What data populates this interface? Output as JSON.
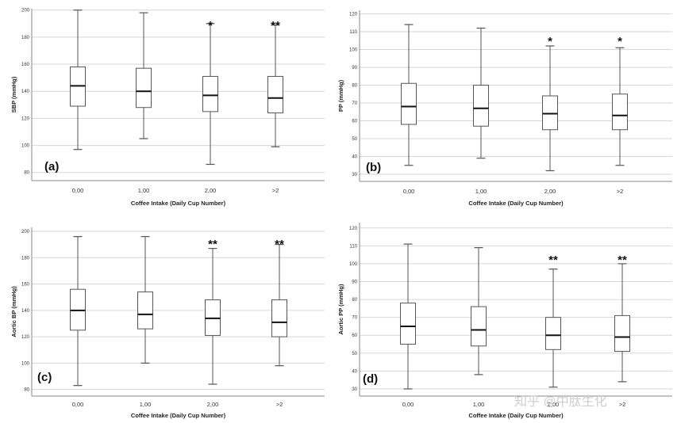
{
  "watermark": "知乎 @中肽生化",
  "chart_data": [
    {
      "type": "box",
      "panel_label": "(a)",
      "xlabel": "Coffee Intake (Daily Cup Number)",
      "ylabel": "SBP (mmHg)",
      "categories": [
        "0,00",
        "1,00",
        "2,00",
        ">2"
      ],
      "yticks": [
        80,
        100,
        120,
        140,
        160,
        180,
        200
      ],
      "ylim": [
        74,
        201
      ],
      "boxes": [
        {
          "min": 97,
          "q1": 129,
          "median": 144,
          "q3": 158,
          "max": 200
        },
        {
          "min": 105,
          "q1": 128,
          "median": 140,
          "q3": 157,
          "max": 198
        },
        {
          "min": 86,
          "q1": 125,
          "median": 137,
          "q3": 151,
          "max": 190
        },
        {
          "min": 99,
          "q1": 124,
          "median": 135,
          "q3": 151,
          "max": 189
        }
      ],
      "significance": [
        "",
        "",
        "*",
        "**"
      ]
    },
    {
      "type": "box",
      "panel_label": "(b)",
      "xlabel": "Coffee Intake (Daily Cup Number)",
      "ylabel": "PP (mmHg)",
      "categories": [
        "0,00",
        "1,00",
        "2,00",
        ">2"
      ],
      "yticks": [
        30,
        40,
        50,
        60,
        70,
        80,
        90,
        100,
        110,
        120
      ],
      "ylim": [
        26,
        122
      ],
      "boxes": [
        {
          "min": 35,
          "q1": 58,
          "median": 68,
          "q3": 81,
          "max": 114
        },
        {
          "min": 39,
          "q1": 57,
          "median": 67,
          "q3": 80,
          "max": 112
        },
        {
          "min": 32,
          "q1": 55,
          "median": 64,
          "q3": 74,
          "max": 102
        },
        {
          "min": 35,
          "q1": 55,
          "median": 63,
          "q3": 75,
          "max": 101
        }
      ],
      "significance": [
        "",
        "",
        "*",
        "*"
      ]
    },
    {
      "type": "box",
      "panel_label": "(c)",
      "xlabel": "Coffee Intake (Daily Cup Number)",
      "ylabel": "Aortic BP (mmHg)",
      "categories": [
        "0,00",
        "1,00",
        "2,00",
        ">2"
      ],
      "yticks": [
        80,
        100,
        120,
        140,
        160,
        180,
        200
      ],
      "ylim": [
        75,
        203
      ],
      "boxes": [
        {
          "min": 83,
          "q1": 125,
          "median": 140,
          "q3": 156,
          "max": 196
        },
        {
          "min": 100,
          "q1": 126,
          "median": 137,
          "q3": 154,
          "max": 196
        },
        {
          "min": 84,
          "q1": 121,
          "median": 134,
          "q3": 148,
          "max": 187
        },
        {
          "min": 98,
          "q1": 120,
          "median": 131,
          "q3": 148,
          "max": 190
        }
      ],
      "significance": [
        "",
        "",
        "**",
        "**"
      ]
    },
    {
      "type": "box",
      "panel_label": "(d)",
      "xlabel": "Coffee Intake (Daily Cup Number)",
      "ylabel": "Aortic PP (mmHg)",
      "categories": [
        "0,00",
        "1,00",
        "2,00",
        ">2"
      ],
      "yticks": [
        30,
        40,
        50,
        60,
        70,
        80,
        90,
        100,
        110,
        120
      ],
      "ylim": [
        26,
        123
      ],
      "boxes": [
        {
          "min": 30,
          "q1": 55,
          "median": 65,
          "q3": 78,
          "max": 111
        },
        {
          "min": 38,
          "q1": 54,
          "median": 63,
          "q3": 76,
          "max": 109
        },
        {
          "min": 31,
          "q1": 52,
          "median": 60,
          "q3": 70,
          "max": 97
        },
        {
          "min": 34,
          "q1": 51,
          "median": 59,
          "q3": 71,
          "max": 100
        }
      ],
      "significance": [
        "",
        "",
        "**",
        "**"
      ]
    }
  ]
}
